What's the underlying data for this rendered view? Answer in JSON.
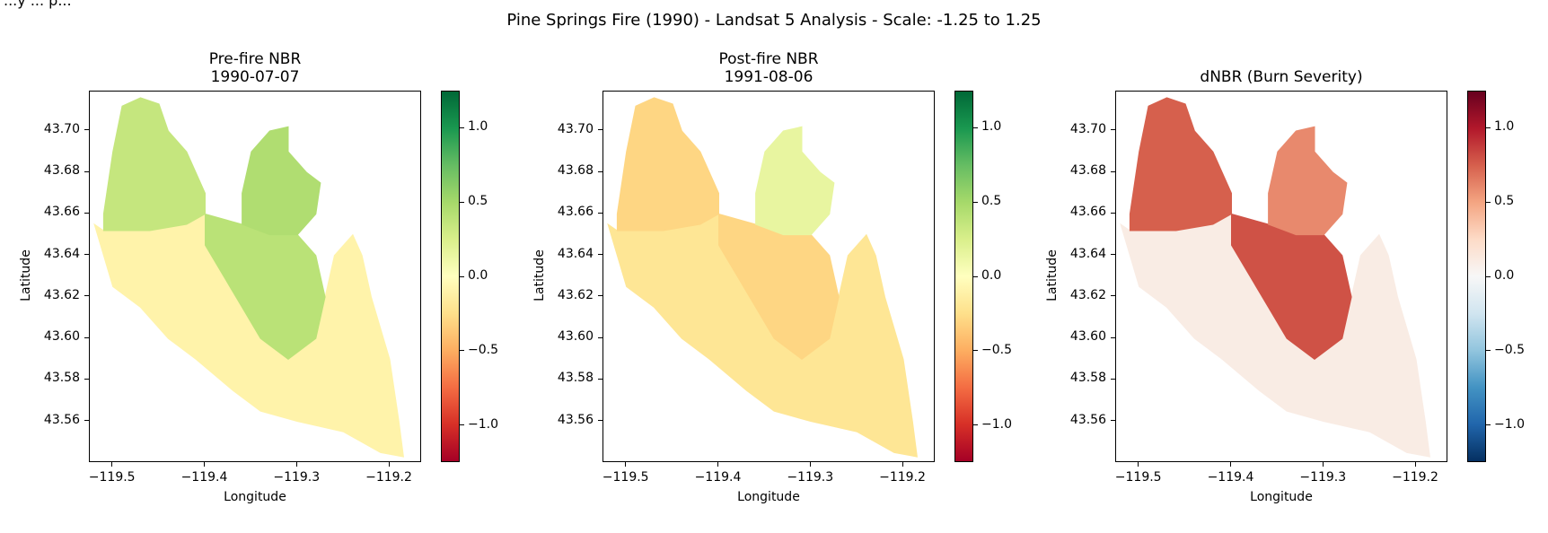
{
  "figure": {
    "corner_text": "...y ... p...",
    "suptitle": "Pine Springs Fire (1990) - Landsat 5 Analysis - Scale: -1.25 to 1.25"
  },
  "panels": [
    {
      "title_line1": "Pre-fire NBR",
      "title_line2": "1990-07-07",
      "xlabel": "Longitude",
      "ylabel": "Latitude",
      "colormap": "RdYlGn"
    },
    {
      "title_line1": "Post-fire NBR",
      "title_line2": "1991-08-06",
      "xlabel": "Longitude",
      "ylabel": "Latitude",
      "colormap": "RdYlGn"
    },
    {
      "title_line1": "dNBR (Burn Severity)",
      "title_line2": "",
      "xlabel": "Longitude",
      "ylabel": "Latitude",
      "colormap": "RdBu_r"
    }
  ],
  "chart_data": [
    {
      "type": "heatmap",
      "title": "Pre-fire NBR\n1990-07-07",
      "xlabel": "Longitude",
      "ylabel": "Latitude",
      "xlim": [
        -119.525,
        -119.165
      ],
      "ylim": [
        43.54,
        43.719
      ],
      "xticks": [
        -119.5,
        -119.4,
        -119.3,
        -119.2
      ],
      "xtick_labels": [
        "−119.5",
        "−119.4",
        "−119.3",
        "−119.2"
      ],
      "yticks": [
        43.56,
        43.58,
        43.6,
        43.62,
        43.64,
        43.66,
        43.68,
        43.7
      ],
      "ytick_labels": [
        "43.56",
        "43.58",
        "43.60",
        "43.62",
        "43.64",
        "43.66",
        "43.68",
        "43.70"
      ],
      "colorbar": {
        "cmap": "RdYlGn",
        "vmin": -1.25,
        "vmax": 1.25,
        "ticks": [
          -1.0,
          -0.5,
          0.0,
          0.5,
          1.0
        ],
        "tick_labels": [
          "−1.0",
          "−0.5",
          "0.0",
          "0.5",
          "1.0"
        ]
      },
      "regions": [
        {
          "name": "northwest lobe",
          "value": 0.35
        },
        {
          "name": "northeast lobe",
          "value": 0.45
        },
        {
          "name": "central band",
          "value": 0.4
        },
        {
          "name": "southwest and southeast",
          "value": -0.1
        }
      ]
    },
    {
      "type": "heatmap",
      "title": "Post-fire NBR\n1991-08-06",
      "xlabel": "Longitude",
      "ylabel": "Latitude",
      "xlim": [
        -119.525,
        -119.165
      ],
      "ylim": [
        43.54,
        43.719
      ],
      "xticks": [
        -119.5,
        -119.4,
        -119.3,
        -119.2
      ],
      "xtick_labels": [
        "−119.5",
        "−119.4",
        "−119.3",
        "−119.2"
      ],
      "yticks": [
        43.56,
        43.58,
        43.6,
        43.62,
        43.64,
        43.66,
        43.68,
        43.7
      ],
      "ytick_labels": [
        "43.56",
        "43.58",
        "43.60",
        "43.62",
        "43.64",
        "43.66",
        "43.68",
        "43.70"
      ],
      "colorbar": {
        "cmap": "RdYlGn",
        "vmin": -1.25,
        "vmax": 1.25,
        "ticks": [
          -1.0,
          -0.5,
          0.0,
          0.5,
          1.0
        ],
        "tick_labels": [
          "−1.0",
          "−0.5",
          "0.0",
          "0.5",
          "1.0"
        ]
      },
      "regions": [
        {
          "name": "northwest lobe",
          "value": -0.3
        },
        {
          "name": "northeast lobe",
          "value": 0.15
        },
        {
          "name": "central band",
          "value": -0.3
        },
        {
          "name": "southwest and southeast",
          "value": -0.2
        }
      ]
    },
    {
      "type": "heatmap",
      "title": "dNBR (Burn Severity)",
      "xlabel": "Longitude",
      "ylabel": "Latitude",
      "xlim": [
        -119.525,
        -119.165
      ],
      "ylim": [
        43.54,
        43.719
      ],
      "xticks": [
        -119.5,
        -119.4,
        -119.3,
        -119.2
      ],
      "xtick_labels": [
        "−119.5",
        "−119.4",
        "−119.3",
        "−119.2"
      ],
      "yticks": [
        43.56,
        43.58,
        43.6,
        43.62,
        43.64,
        43.66,
        43.68,
        43.7
      ],
      "ytick_labels": [
        "43.56",
        "43.58",
        "43.60",
        "43.62",
        "43.64",
        "43.66",
        "43.68",
        "43.70"
      ],
      "colorbar": {
        "cmap": "RdBu_r",
        "vmin": -1.25,
        "vmax": 1.25,
        "ticks": [
          -1.0,
          -0.5,
          0.0,
          0.5,
          1.0
        ],
        "tick_labels": [
          "−1.0",
          "−0.5",
          "0.0",
          "0.5",
          "1.0"
        ]
      },
      "regions": [
        {
          "name": "northwest lobe",
          "value": 0.75
        },
        {
          "name": "northeast lobe",
          "value": 0.6
        },
        {
          "name": "central band",
          "value": 0.8
        },
        {
          "name": "southwest and southeast",
          "value": 0.1
        }
      ]
    }
  ]
}
